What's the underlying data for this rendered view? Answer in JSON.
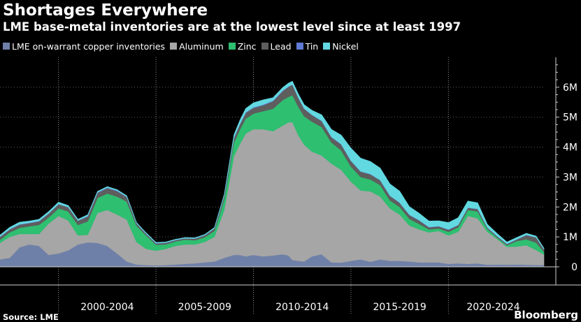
{
  "chart_data": {
    "type": "area",
    "title": "Shortages Everywhere",
    "subtitle": "LME base-metal inventories are at the lowest level since at least 1997",
    "source": "Source: LME",
    "brand": "Bloomberg",
    "stacked": true,
    "x_range": [
      1997,
      2024.9
    ],
    "ylim": [
      0,
      7000000
    ],
    "y_ticks": [
      {
        "value": 0,
        "label": "0"
      },
      {
        "value": 1000000,
        "label": "1M"
      },
      {
        "value": 2000000,
        "label": "2M"
      },
      {
        "value": 3000000,
        "label": "3M"
      },
      {
        "value": 4000000,
        "label": "4M"
      },
      {
        "value": 5000000,
        "label": "5M"
      },
      {
        "value": 6000000,
        "label": "6M"
      }
    ],
    "x_period_labels": [
      {
        "label": "2000-2004",
        "center": 2002.5
      },
      {
        "label": "2005-2009",
        "center": 2007.5
      },
      {
        "label": "2010-2014",
        "center": 2012.5
      },
      {
        "label": "2015-2019",
        "center": 2017.5
      },
      {
        "label": "2020-2024",
        "center": 2022.3
      }
    ],
    "x_dividers": [
      2000,
      2005,
      2010,
      2015,
      2020
    ],
    "legend_position": "top-left",
    "x": [
      1997.0,
      1997.5,
      1998.0,
      1998.5,
      1999.0,
      1999.5,
      2000.0,
      2000.5,
      2001.0,
      2001.5,
      2002.0,
      2002.5,
      2003.0,
      2003.5,
      2004.0,
      2004.5,
      2005.0,
      2005.5,
      2006.0,
      2006.5,
      2007.0,
      2007.5,
      2008.0,
      2008.5,
      2009.0,
      2009.3,
      2009.6,
      2010.0,
      2010.5,
      2011.0,
      2011.5,
      2011.8,
      2012.0,
      2012.3,
      2012.6,
      2013.0,
      2013.5,
      2014.0,
      2014.5,
      2015.0,
      2015.5,
      2016.0,
      2016.5,
      2017.0,
      2017.5,
      2018.0,
      2018.5,
      2019.0,
      2019.5,
      2020.0,
      2020.5,
      2021.0,
      2021.5,
      2022.0,
      2022.5,
      2023.0,
      2023.5,
      2024.0,
      2024.5,
      2024.9
    ],
    "series": [
      {
        "name": "LME on-warrant copper inventories",
        "color": "#6f80a8",
        "values": [
          250000,
          300000,
          650000,
          750000,
          700000,
          400000,
          450000,
          550000,
          750000,
          820000,
          800000,
          700000,
          450000,
          180000,
          80000,
          60000,
          50000,
          60000,
          80000,
          100000,
          120000,
          150000,
          180000,
          300000,
          400000,
          400000,
          350000,
          400000,
          350000,
          380000,
          420000,
          380000,
          230000,
          200000,
          180000,
          350000,
          420000,
          150000,
          140000,
          200000,
          250000,
          170000,
          250000,
          200000,
          200000,
          180000,
          150000,
          150000,
          150000,
          100000,
          120000,
          100000,
          120000,
          70000,
          80000,
          70000,
          80000,
          70000,
          60000,
          60000
        ]
      },
      {
        "name": "Aluminum",
        "color": "#a6a6a6",
        "values": [
          550000,
          700000,
          450000,
          350000,
          400000,
          1050000,
          1250000,
          1000000,
          300000,
          250000,
          1000000,
          1200000,
          1300000,
          1400000,
          750000,
          540000,
          490000,
          540000,
          620000,
          650000,
          630000,
          680000,
          820000,
          1600000,
          3300000,
          3700000,
          4100000,
          4200000,
          4250000,
          4150000,
          4300000,
          4450000,
          4600000,
          4200000,
          3900000,
          3500000,
          3300000,
          3300000,
          3100000,
          2650000,
          2300000,
          2350000,
          2100000,
          1750000,
          1550000,
          1200000,
          1100000,
          1000000,
          1050000,
          950000,
          1050000,
          1600000,
          1500000,
          1100000,
          850000,
          600000,
          600000,
          650000,
          500000,
          350000
        ]
      },
      {
        "name": "Zinc",
        "color": "#2ebf71",
        "values": [
          100000,
          150000,
          200000,
          250000,
          300000,
          200000,
          250000,
          300000,
          350000,
          450000,
          500000,
          550000,
          600000,
          600000,
          550000,
          450000,
          200000,
          150000,
          150000,
          160000,
          140000,
          160000,
          200000,
          350000,
          450000,
          480000,
          500000,
          520000,
          600000,
          750000,
          850000,
          850000,
          900000,
          950000,
          950000,
          1000000,
          950000,
          700000,
          650000,
          500000,
          450000,
          400000,
          380000,
          270000,
          250000,
          220000,
          180000,
          100000,
          80000,
          120000,
          150000,
          200000,
          230000,
          100000,
          50000,
          50000,
          180000,
          200000,
          250000,
          90000
        ]
      },
      {
        "name": "Lead",
        "color": "#5e5e5e",
        "values": [
          100000,
          100000,
          110000,
          110000,
          120000,
          130000,
          140000,
          140000,
          140000,
          160000,
          170000,
          180000,
          180000,
          150000,
          70000,
          50000,
          40000,
          50000,
          40000,
          40000,
          50000,
          60000,
          80000,
          120000,
          150000,
          170000,
          190000,
          190000,
          200000,
          250000,
          300000,
          330000,
          350000,
          300000,
          250000,
          220000,
          200000,
          180000,
          200000,
          190000,
          180000,
          170000,
          160000,
          150000,
          140000,
          130000,
          120000,
          70000,
          70000,
          70000,
          70000,
          70000,
          80000,
          40000,
          40000,
          40000,
          50000,
          140000,
          170000,
          80000
        ]
      },
      {
        "name": "Tin",
        "color": "#5f7bd4",
        "values": [
          10000,
          10000,
          10000,
          10000,
          10000,
          10000,
          10000,
          10000,
          10000,
          20000,
          20000,
          20000,
          20000,
          15000,
          10000,
          10000,
          10000,
          10000,
          10000,
          10000,
          10000,
          10000,
          10000,
          10000,
          20000,
          20000,
          20000,
          20000,
          20000,
          20000,
          20000,
          20000,
          10000,
          10000,
          10000,
          10000,
          10000,
          10000,
          10000,
          10000,
          10000,
          10000,
          10000,
          10000,
          10000,
          10000,
          10000,
          10000,
          10000,
          10000,
          10000,
          10000,
          10000,
          10000,
          10000,
          10000,
          10000,
          10000,
          10000,
          10000
        ]
      },
      {
        "name": "Nickel",
        "color": "#62d8e0",
        "values": [
          50000,
          60000,
          70000,
          60000,
          60000,
          60000,
          60000,
          50000,
          40000,
          40000,
          30000,
          30000,
          30000,
          30000,
          25000,
          25000,
          25000,
          20000,
          20000,
          20000,
          20000,
          20000,
          25000,
          40000,
          90000,
          120000,
          130000,
          150000,
          160000,
          100000,
          100000,
          110000,
          110000,
          120000,
          130000,
          150000,
          200000,
          250000,
          300000,
          420000,
          440000,
          420000,
          400000,
          390000,
          380000,
          270000,
          230000,
          200000,
          180000,
          230000,
          240000,
          220000,
          200000,
          100000,
          80000,
          60000,
          60000,
          50000,
          40000,
          30000
        ]
      }
    ]
  }
}
